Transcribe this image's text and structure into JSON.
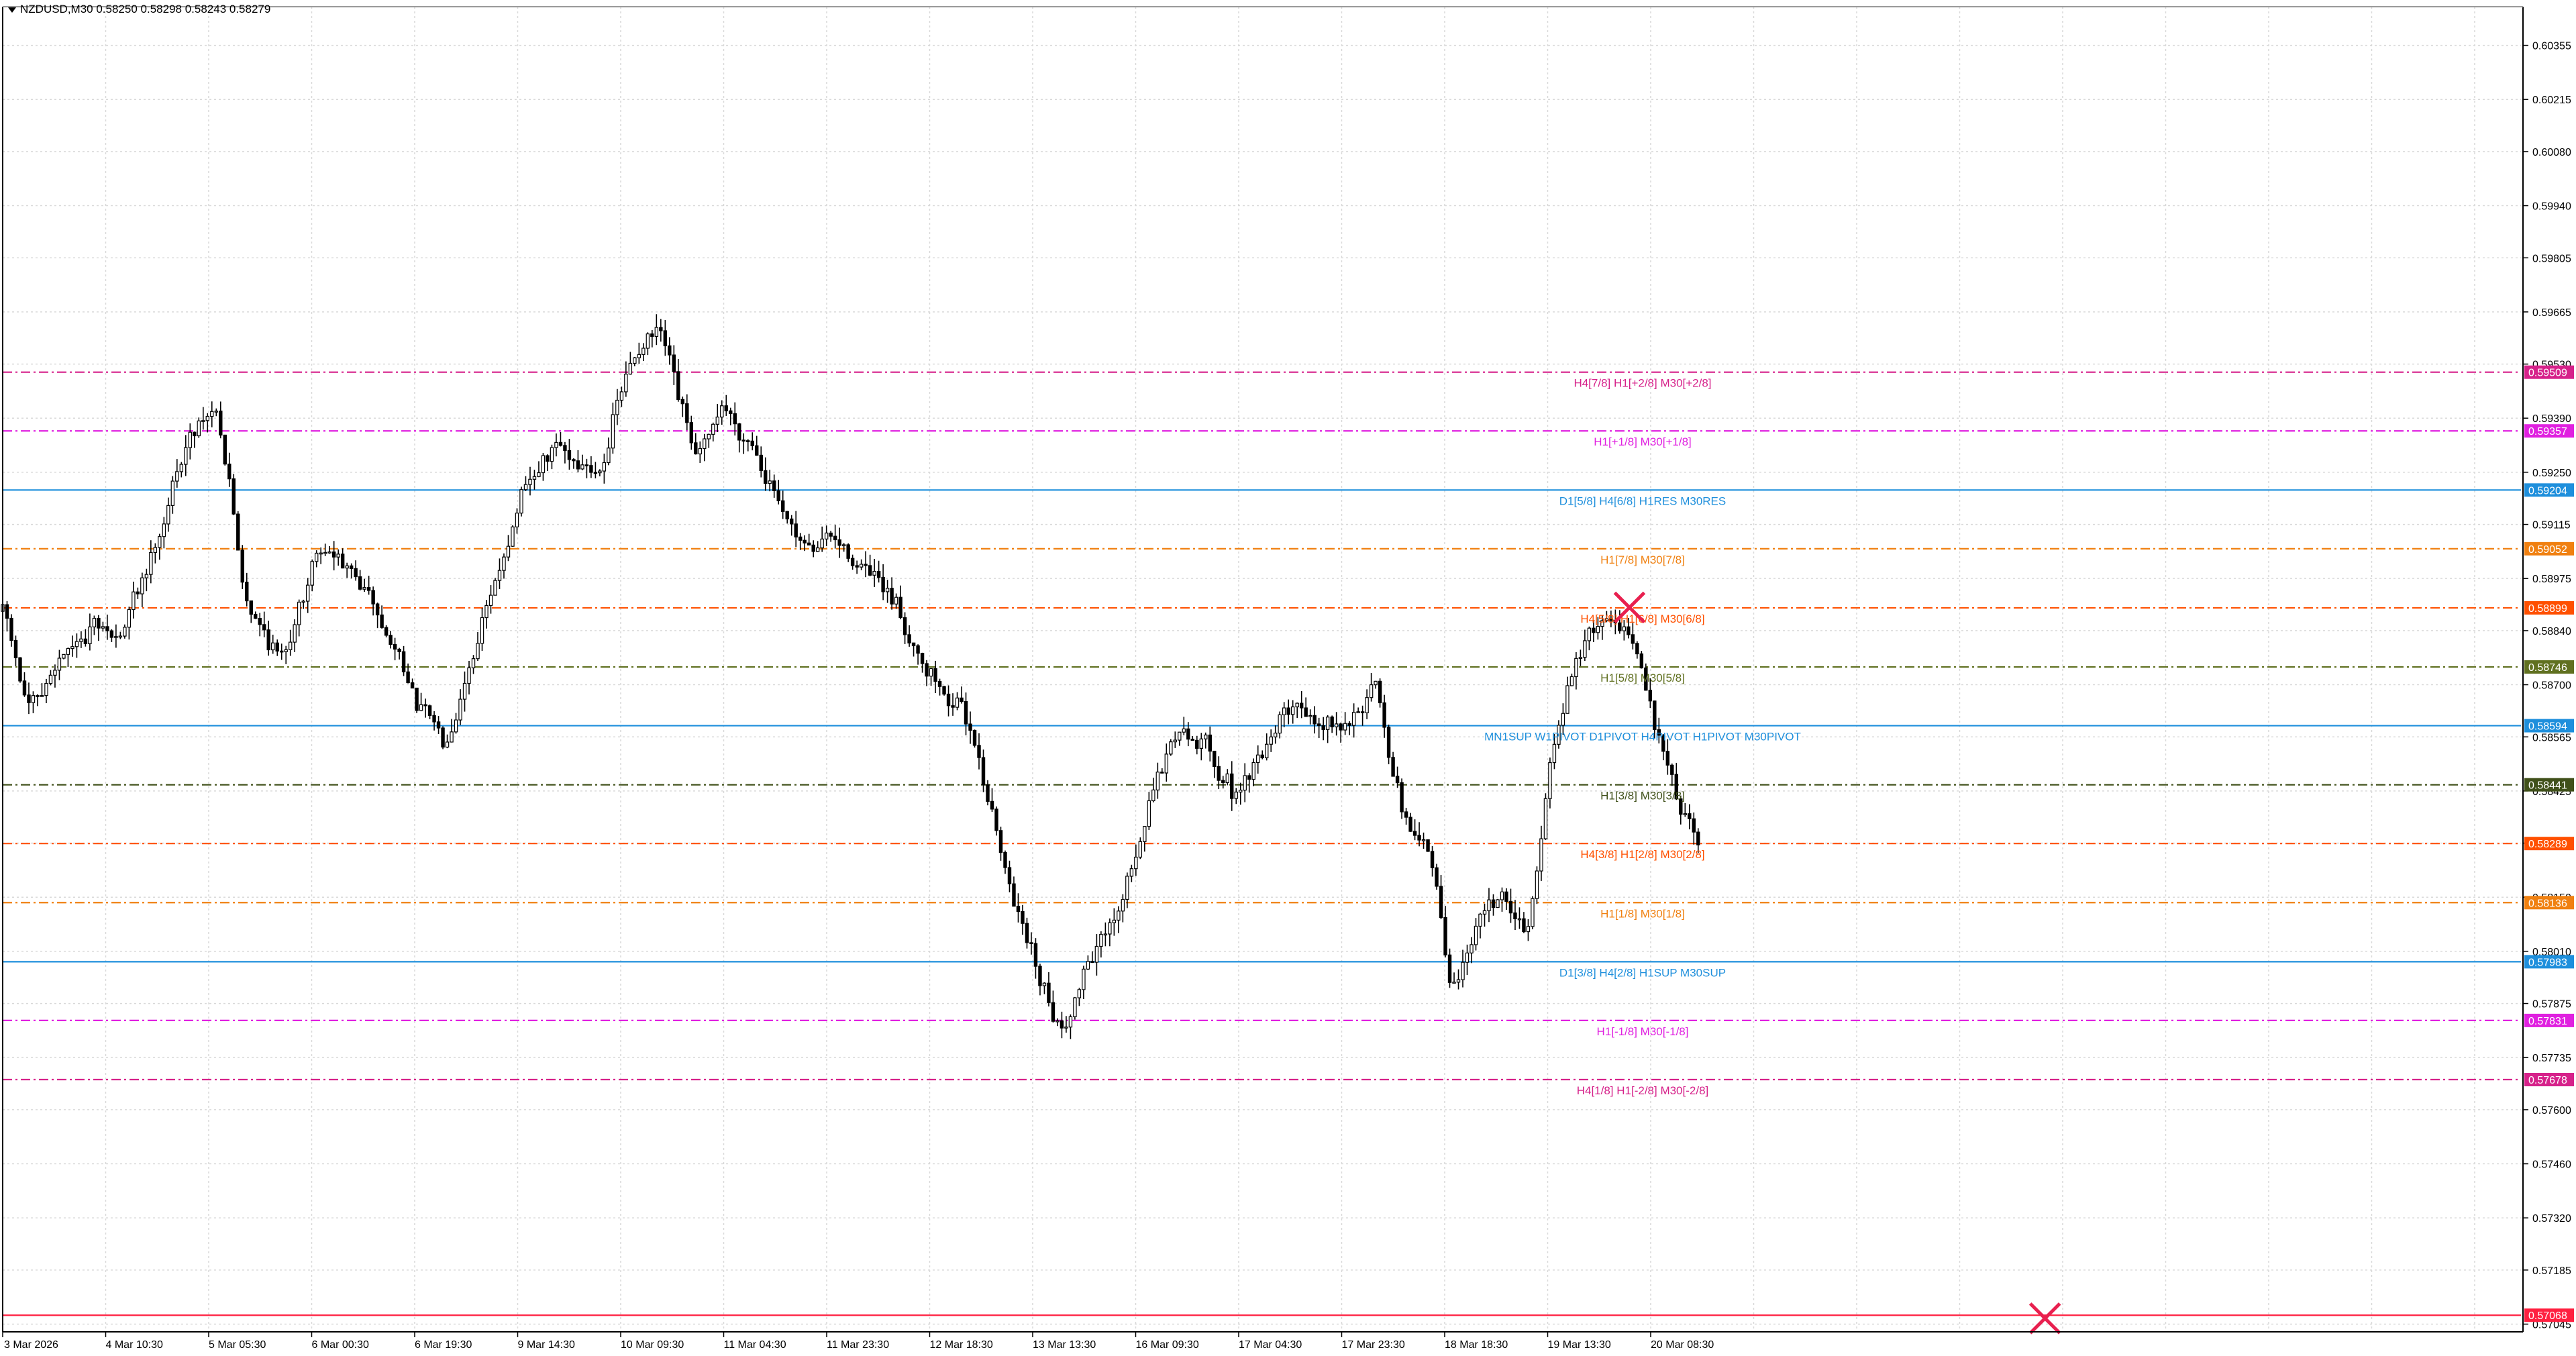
{
  "window": {
    "symbol_header": "NZDUSD,M30  0.58250 0.58298 0.58243 0.58279"
  },
  "colors": {
    "background": "#ffffff",
    "grid": "#d9d9d9",
    "candle": "#000000",
    "axis": "#000000",
    "cross": "#e8204f",
    "pink": "#d6218a",
    "magenta": "#e020e0",
    "blue": "#1e8fdc",
    "orange": "#f08010",
    "orangered": "#ff5000",
    "olive": "#607020",
    "olive_dark": "#40501a",
    "red": "#ff2040"
  },
  "chart_data": {
    "type": "candlestick",
    "symbol": "NZDUSD",
    "timeframe": "M30",
    "ylim": [
      0.57025,
      0.60455
    ],
    "price_ticks": [
      "0.60355",
      "0.60215",
      "0.60080",
      "0.59940",
      "0.59805",
      "0.59665",
      "0.59530",
      "0.59390",
      "0.59250",
      "0.59115",
      "0.58975",
      "0.58840",
      "0.58700",
      "0.58565",
      "0.58425",
      "0.58290",
      "0.58150",
      "0.58010",
      "0.57875",
      "0.57735",
      "0.57600",
      "0.57460",
      "0.57320",
      "0.57185",
      "0.57045"
    ],
    "time_labels": [
      "3 Mar 2026",
      "4 Mar 10:30",
      "5 Mar 05:30",
      "6 Mar 00:30",
      "6 Mar 19:30",
      "9 Mar 14:30",
      "10 Mar 09:30",
      "11 Mar 04:30",
      "11 Mar 23:30",
      "12 Mar 18:30",
      "13 Mar 13:30",
      "16 Mar 09:30",
      "17 Mar 04:30",
      "17 Mar 23:30",
      "18 Mar 18:30",
      "19 Mar 13:30",
      "20 Mar 08:30"
    ],
    "path_anchors": [
      [
        0,
        0.5889
      ],
      [
        0.01,
        0.5861
      ],
      [
        0.02,
        0.5875
      ],
      [
        0.035,
        0.5885
      ],
      [
        0.045,
        0.5881
      ],
      [
        0.06,
        0.5907
      ],
      [
        0.075,
        0.5938
      ],
      [
        0.085,
        0.5942
      ],
      [
        0.095,
        0.5893
      ],
      [
        0.11,
        0.5876
      ],
      [
        0.125,
        0.5907
      ],
      [
        0.14,
        0.5897
      ],
      [
        0.155,
        0.588
      ],
      [
        0.165,
        0.5863
      ],
      [
        0.175,
        0.5856
      ],
      [
        0.19,
        0.5887
      ],
      [
        0.205,
        0.5918
      ],
      [
        0.22,
        0.5932
      ],
      [
        0.235,
        0.5924
      ],
      [
        0.25,
        0.5956
      ],
      [
        0.26,
        0.5962
      ],
      [
        0.275,
        0.5926
      ],
      [
        0.285,
        0.5943
      ],
      [
        0.3,
        0.5928
      ],
      [
        0.315,
        0.5905
      ],
      [
        0.33,
        0.5908
      ],
      [
        0.345,
        0.5897
      ],
      [
        0.355,
        0.5889
      ],
      [
        0.365,
        0.5875
      ],
      [
        0.375,
        0.5866
      ],
      [
        0.385,
        0.5859
      ],
      [
        0.395,
        0.5826
      ],
      [
        0.405,
        0.5806
      ],
      [
        0.415,
        0.5789
      ],
      [
        0.42,
        0.5779
      ],
      [
        0.43,
        0.5799
      ],
      [
        0.44,
        0.5807
      ],
      [
        0.455,
        0.5839
      ],
      [
        0.465,
        0.5859
      ],
      [
        0.475,
        0.5856
      ],
      [
        0.49,
        0.584
      ],
      [
        0.5,
        0.5855
      ],
      [
        0.51,
        0.5866
      ],
      [
        0.52,
        0.586
      ],
      [
        0.535,
        0.5862
      ],
      [
        0.545,
        0.5868
      ],
      [
        0.555,
        0.5835
      ],
      [
        0.565,
        0.583
      ],
      [
        0.575,
        0.5788
      ],
      [
        0.585,
        0.5809
      ],
      [
        0.595,
        0.5815
      ],
      [
        0.605,
        0.5806
      ],
      [
        0.61,
        0.5831
      ],
      [
        0.615,
        0.5855
      ],
      [
        0.625,
        0.588
      ],
      [
        0.635,
        0.5889
      ],
      [
        0.645,
        0.5884
      ],
      [
        0.655,
        0.586
      ],
      [
        0.665,
        0.584
      ],
      [
        0.675,
        0.5827
      ]
    ],
    "levels": [
      {
        "price": 0.59509,
        "price_label": "0.59509",
        "label": "H4[7/8] H1[+2/8] M30[+2/8]",
        "color": "#d6218a",
        "style": "dashdot"
      },
      {
        "price": 0.59357,
        "price_label": "0.59357",
        "label": "H1[+1/8] M30[+1/8]",
        "color": "#e020e0",
        "style": "dashdot"
      },
      {
        "price": 0.59204,
        "price_label": "0.59204",
        "label": "D1[5/8] H4[6/8] H1RES M30RES",
        "color": "#1e8fdc",
        "style": "solid"
      },
      {
        "price": 0.59052,
        "price_label": "0.59052",
        "label": "H1[7/8] M30[7/8]",
        "color": "#f08010",
        "style": "dashdot"
      },
      {
        "price": 0.58899,
        "price_label": "0.58899",
        "label": "H4[5/8] H1[6/8] M30[6/8]",
        "color": "#ff5000",
        "style": "dashdot"
      },
      {
        "price": 0.58746,
        "price_label": "0.58746",
        "label": "H1[5/8] M30[5/8]",
        "color": "#607020",
        "style": "dashdot"
      },
      {
        "price": 0.58594,
        "price_label": "0.58594",
        "label": "MN1SUP W1PIVOT D1PIVOT H4PIVOT H1PIVOT M30PIVOT",
        "color": "#1e8fdc",
        "style": "solid"
      },
      {
        "price": 0.58441,
        "price_label": "0.58441",
        "label": "H1[3/8] M30[3/8]",
        "color": "#40501a",
        "style": "dashdot"
      },
      {
        "price": 0.58289,
        "price_label": "0.58289",
        "label": "H4[3/8] H1[2/8] M30[2/8]",
        "color": "#ff5000",
        "style": "dashdot"
      },
      {
        "price": 0.58136,
        "price_label": "0.58136",
        "label": "H1[1/8] M30[1/8]",
        "color": "#f08010",
        "style": "dashdot"
      },
      {
        "price": 0.57983,
        "price_label": "0.57983",
        "label": "D1[3/8] H4[2/8] H1SUP M30SUP",
        "color": "#1e8fdc",
        "style": "solid"
      },
      {
        "price": 0.57831,
        "price_label": "0.57831",
        "label": "H1[-1/8] M30[-1/8]",
        "color": "#e020e0",
        "style": "dashdot"
      },
      {
        "price": 0.57678,
        "price_label": "0.57678",
        "label": "H4[1/8] H1[-2/8] M30[-2/8]",
        "color": "#d6218a",
        "style": "dashdot"
      },
      {
        "price": 0.57068,
        "price_label": "0.57068",
        "label": "",
        "color": "#ff2040",
        "style": "solid"
      }
    ],
    "markers": [
      {
        "type": "cross",
        "price": 0.589,
        "time_frac": 0.646
      },
      {
        "type": "cross",
        "price": 0.5706,
        "time_frac": 0.811
      }
    ]
  }
}
